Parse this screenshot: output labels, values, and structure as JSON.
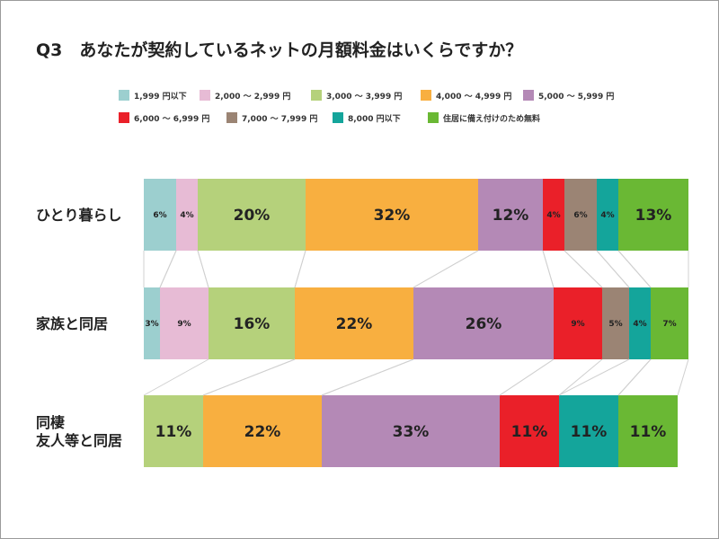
{
  "chart_data": {
    "type": "bar",
    "stacked": true,
    "orientation": "horizontal",
    "title": "Q3　あなたが契約しているネットの月額料金はいくらですか？",
    "xlim": [
      0,
      100
    ],
    "legend_position": "top",
    "categories": [
      "ひとり暮らし",
      "家族と同居",
      "同棲\n友人等と同居"
    ],
    "series": [
      {
        "name": "1,999 円以下",
        "color": "#9ccfcf",
        "values": [
          6,
          3,
          0
        ]
      },
      {
        "name": "2,000 ～ 2,999 円",
        "color": "#e7bbd5",
        "values": [
          4,
          9,
          0
        ]
      },
      {
        "name": "3,000 ～ 3,999 円",
        "color": "#b5d17b",
        "values": [
          20,
          16,
          11
        ]
      },
      {
        "name": "4,000 ～ 4,999 円",
        "color": "#f8af40",
        "values": [
          32,
          22,
          22
        ]
      },
      {
        "name": "5,000 ～ 5,999 円",
        "color": "#b489b6",
        "values": [
          12,
          26,
          33
        ]
      },
      {
        "name": "6,000 ～ 6,999 円",
        "color": "#ea2029",
        "values": [
          4,
          9,
          11
        ]
      },
      {
        "name": "7,000 ～ 7,999 円",
        "color": "#9b8474",
        "values": [
          6,
          5,
          0
        ]
      },
      {
        "name": "8,000 円以下",
        "color": "#14a59b",
        "values": [
          4,
          4,
          11
        ]
      },
      {
        "name": "住居に備え付けのため無料",
        "color": "#6ab834",
        "values": [
          13,
          7,
          11
        ]
      }
    ]
  }
}
